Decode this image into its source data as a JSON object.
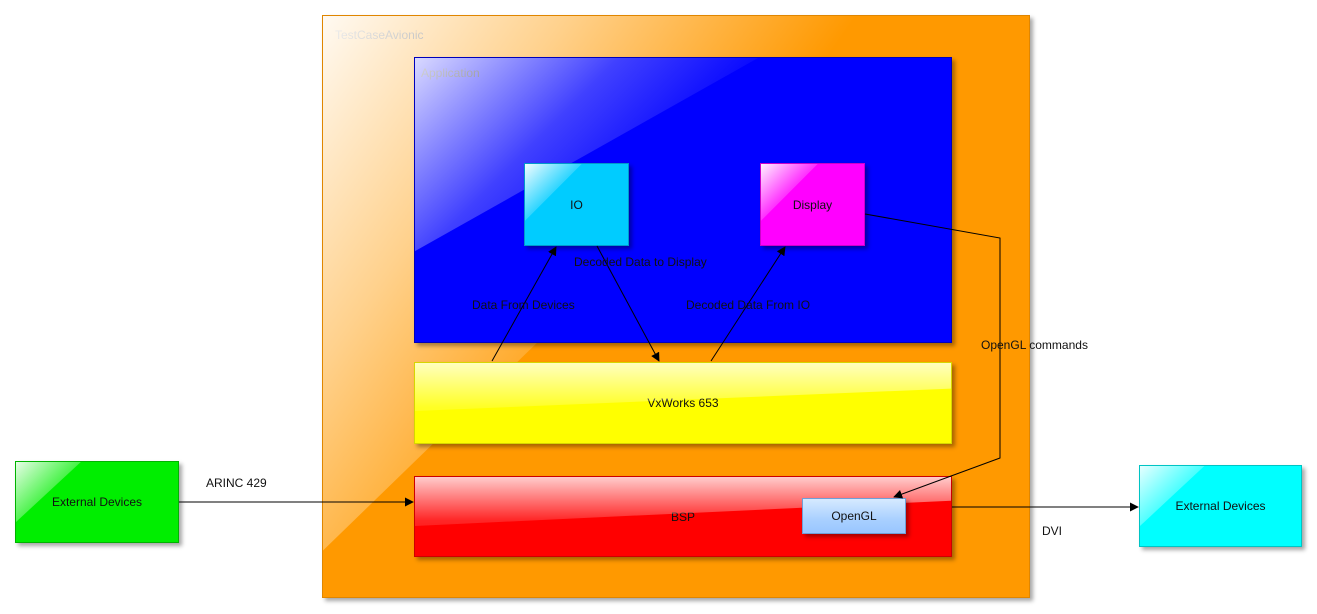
{
  "diagram": {
    "container": {
      "title": "TestCaseAvionic",
      "color": "#ff9900"
    },
    "nodes": {
      "application": {
        "label": "Application",
        "color": "#0000ff"
      },
      "io": {
        "label": "IO",
        "color": "#00ccff"
      },
      "display": {
        "label": "Display",
        "color": "#ff00ff"
      },
      "vxworks": {
        "label": "VxWorks 653",
        "color": "#ffff00"
      },
      "bsp": {
        "label": "BSP",
        "color": "#ff0000"
      },
      "opengl": {
        "label": "OpenGL",
        "color": "#a9d0ff"
      },
      "external_left": {
        "label": "External Devices",
        "color": "#00ee00"
      },
      "external_right": {
        "label": "External Devices",
        "color": "#00ffff"
      }
    },
    "edges": {
      "decoded_to_display": {
        "label": "Decoded Data to Display",
        "from": "io",
        "to": "vxworks"
      },
      "data_from_devices": {
        "label": "Data From Devices",
        "from": "vxworks",
        "to": "io"
      },
      "decoded_from_io": {
        "label": "Decoded Data From IO",
        "from": "vxworks",
        "to": "display"
      },
      "opengl_commands": {
        "label": "OpenGL commands",
        "from": "display",
        "to": "opengl"
      },
      "arinc": {
        "label": "ARINC 429",
        "from": "external_left",
        "to": "bsp"
      },
      "dvi": {
        "label": "DVI",
        "from": "bsp",
        "to": "external_right"
      }
    }
  }
}
